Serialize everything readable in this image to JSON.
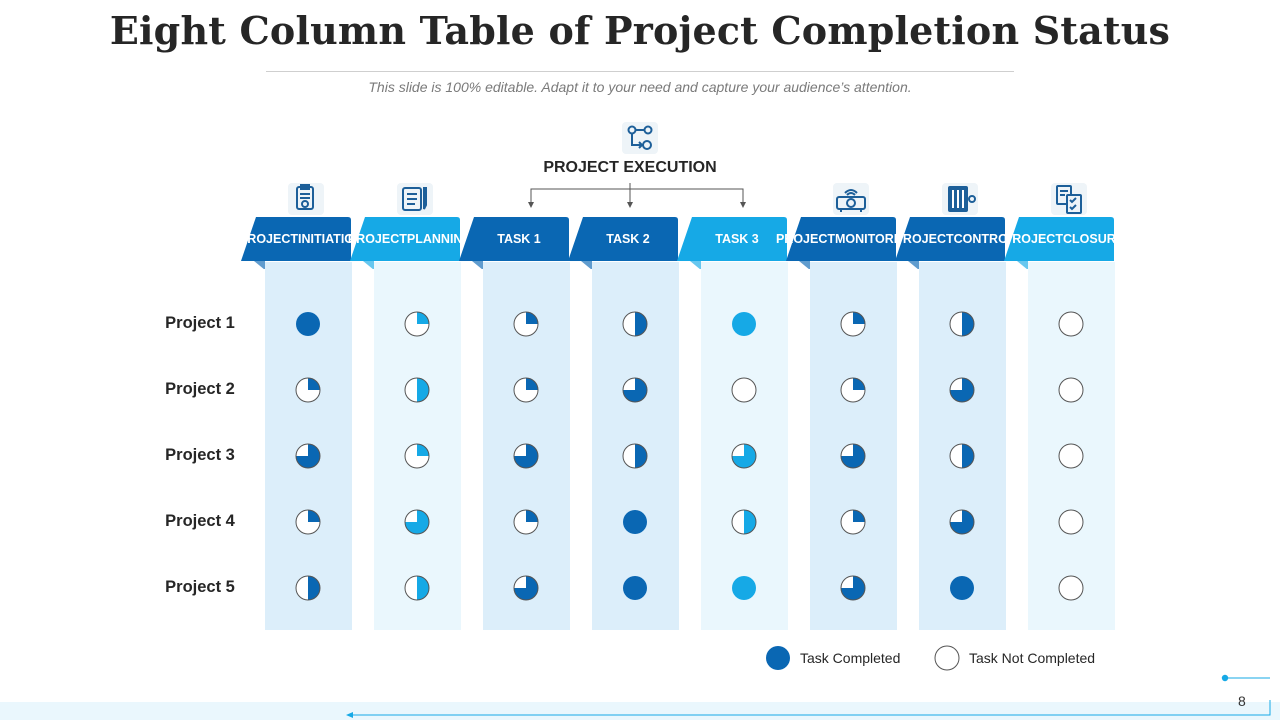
{
  "slide": {
    "title": "Eight Column Table of Project Completion Status",
    "subtitle": "This slide is 100% editable. Adapt it to your need and capture your audience’s attention.",
    "page_number": "8"
  },
  "execution": {
    "label": "PROJECT EXECUTION",
    "icon": "gears-flow-icon"
  },
  "colors": {
    "dark": "#0A67B3",
    "bright": "#16A9E6",
    "bg_dark": "#DCEEFA",
    "bg_light": "#EAF7FD",
    "outline": "#555555"
  },
  "columns": [
    {
      "line1": "PROJECT",
      "line2": "INITIATION",
      "icon": "clipboard-certificate-icon",
      "tone": "dark"
    },
    {
      "line1": "PROJECT",
      "line2": "PLANNING",
      "icon": "checklist-pencil-icon",
      "tone": "bright"
    },
    {
      "line1": "",
      "line2": "TASK 1",
      "icon": "",
      "tone": "dark"
    },
    {
      "line1": "",
      "line2": "TASK 2",
      "icon": "",
      "tone": "dark"
    },
    {
      "line1": "",
      "line2": "TASK 3",
      "icon": "",
      "tone": "bright"
    },
    {
      "line1": "PROJECT",
      "line2": "MONITORING",
      "icon": "projector-icon",
      "tone": "dark"
    },
    {
      "line1": "PROJECT",
      "line2": "CONTROL",
      "icon": "control-panel-icon",
      "tone": "dark"
    },
    {
      "line1": "PROJECT",
      "line2": "CLOSURE",
      "icon": "checklist-document-icon",
      "tone": "bright"
    }
  ],
  "rows": [
    {
      "label": "Project 1",
      "completion": [
        1,
        0.25,
        0.25,
        0.5,
        1,
        0.25,
        0.5,
        0
      ]
    },
    {
      "label": "Project 2",
      "completion": [
        0.25,
        0.5,
        0.25,
        0.75,
        0,
        0.25,
        0.75,
        0
      ]
    },
    {
      "label": "Project 3",
      "completion": [
        0.75,
        0.25,
        0.75,
        0.5,
        0.75,
        0.75,
        0.5,
        0
      ]
    },
    {
      "label": "Project 4",
      "completion": [
        0.25,
        0.75,
        0.25,
        1,
        0.5,
        0.25,
        0.75,
        0
      ]
    },
    {
      "label": "Project 5",
      "completion": [
        0.5,
        0.5,
        0.75,
        1,
        1,
        0.75,
        1,
        0
      ]
    }
  ],
  "legend": {
    "completed": "Task Completed",
    "not_completed": "Task Not Completed"
  }
}
